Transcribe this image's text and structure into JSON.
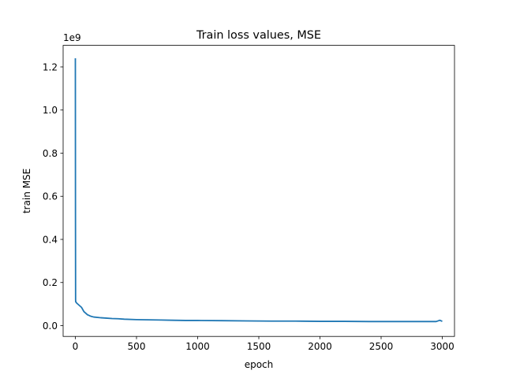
{
  "chart_data": {
    "type": "line",
    "title": "Train loss values, MSE",
    "xlabel": "epoch",
    "ylabel": "train MSE",
    "y_offset_label": "1e9",
    "xlim": [
      -100,
      3100
    ],
    "ylim": [
      -0.05,
      1.3
    ],
    "x_ticks": [
      0,
      500,
      1000,
      1500,
      2000,
      2500,
      3000
    ],
    "x_tick_labels": [
      "0",
      "500",
      "1000",
      "1500",
      "2000",
      "2500",
      "3000"
    ],
    "y_ticks": [
      0.0,
      0.2,
      0.4,
      0.6,
      0.8,
      1.0,
      1.2
    ],
    "y_tick_labels": [
      "0.0",
      "0.2",
      "0.4",
      "0.6",
      "0.8",
      "1.0",
      "1.2"
    ],
    "grid": false,
    "series": [
      {
        "color": "#1f77b4",
        "x": [
          0,
          1,
          2,
          3,
          5,
          10,
          20,
          30,
          40,
          50,
          60,
          70,
          80,
          90,
          100,
          110,
          120,
          130,
          150,
          200,
          250,
          300,
          350,
          400,
          500,
          600,
          700,
          800,
          900,
          1000,
          1200,
          1400,
          1600,
          1800,
          2000,
          2200,
          2400,
          2600,
          2800,
          2950,
          2980,
          3000
        ],
        "y": [
          1.24,
          0.5,
          0.12,
          0.11,
          0.11,
          0.105,
          0.1,
          0.095,
          0.09,
          0.085,
          0.075,
          0.065,
          0.06,
          0.055,
          0.05,
          0.048,
          0.045,
          0.043,
          0.04,
          0.037,
          0.035,
          0.033,
          0.032,
          0.03,
          0.028,
          0.027,
          0.026,
          0.025,
          0.024,
          0.024,
          0.023,
          0.022,
          0.021,
          0.021,
          0.02,
          0.02,
          0.019,
          0.019,
          0.019,
          0.019,
          0.025,
          0.02
        ]
      }
    ]
  }
}
